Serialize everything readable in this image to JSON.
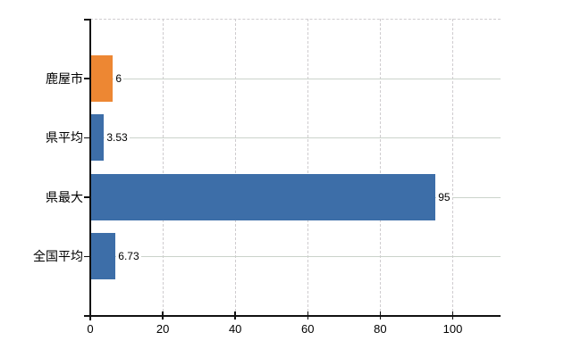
{
  "chart_data": {
    "type": "bar",
    "orientation": "horizontal",
    "title": "",
    "xlabel": "",
    "ylabel": "",
    "categories": [
      "鹿屋市",
      "県平均",
      "県最大",
      "全国平均"
    ],
    "values": [
      6,
      3.53,
      95,
      6.73
    ],
    "value_labels": [
      "6",
      "3.53",
      "95",
      "6.73"
    ],
    "bar_colors": [
      "#ED8733",
      "#3D6EA8",
      "#3D6EA8",
      "#3D6EA8"
    ],
    "x_ticks": [
      0,
      20,
      40,
      60,
      80,
      100
    ],
    "x_tick_labels": [
      "0",
      "20",
      "40",
      "60",
      "80",
      "100"
    ],
    "xlim": [
      0,
      113.2
    ],
    "grid": true,
    "legend": false
  },
  "colors": {
    "background": "#FFFFFF",
    "axis": "#111111",
    "text": "#000000",
    "grid_dashed": "#CFCCCF",
    "grid_solid": "#CBD3CB",
    "bar_blue": "#3D6EA8",
    "bar_orange": "#ED8733"
  }
}
